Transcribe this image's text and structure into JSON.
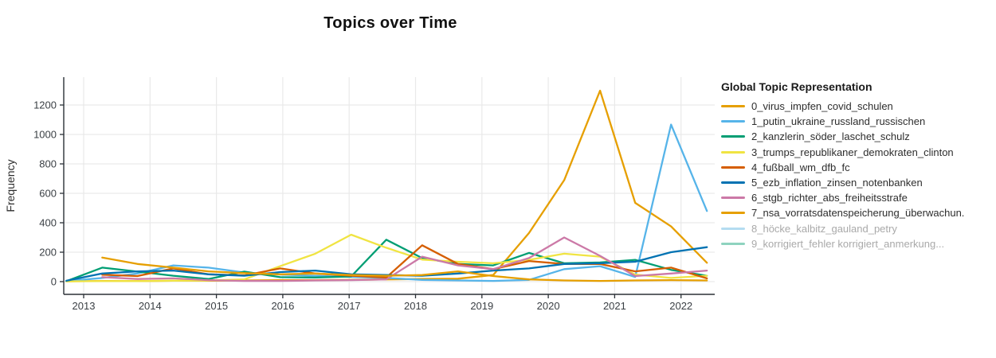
{
  "title": "Topics over Time",
  "y_axis": {
    "label": "Frequency",
    "ticks": [
      0,
      200,
      400,
      600,
      800,
      1000,
      1200
    ]
  },
  "x_axis": {
    "ticks": [
      2013,
      2014,
      2015,
      2016,
      2017,
      2018,
      2019,
      2020,
      2021,
      2022
    ]
  },
  "legend": {
    "title": "Global Topic Representation"
  },
  "chart_data": {
    "type": "line",
    "title": "Topics over Time",
    "xlabel": "",
    "ylabel": "Frequency",
    "xlim": [
      2012.7,
      2022.51
    ],
    "ylim": [
      0,
      1300
    ],
    "grid": true,
    "legend_position": "right",
    "x": [
      2012.74,
      2013.28,
      2013.81,
      2014.35,
      2014.88,
      2015.42,
      2015.96,
      2016.49,
      2017.03,
      2017.56,
      2018.1,
      2018.64,
      2019.17,
      2019.71,
      2020.24,
      2020.78,
      2021.31,
      2021.85,
      2022.39
    ],
    "series": [
      {
        "name": "0_virus_impfen_covid_schulen",
        "color": "#E69F00",
        "visible": true,
        "values": [
          2,
          5,
          4,
          6,
          6,
          8,
          10,
          10,
          12,
          15,
          18,
          20,
          45,
          330,
          690,
          1298,
          535,
          375,
          128
        ]
      },
      {
        "name": "1_putin_ukraine_russland_russischen",
        "color": "#56B4E9",
        "visible": true,
        "values": [
          4,
          25,
          55,
          110,
          95,
          62,
          48,
          40,
          32,
          25,
          12,
          8,
          5,
          12,
          85,
          105,
          32,
          1067,
          480
        ]
      },
      {
        "name": "2_kanzlerin_söder_laschet_schulz",
        "color": "#009E73",
        "visible": true,
        "values": [
          3,
          95,
          68,
          40,
          18,
          68,
          30,
          28,
          35,
          285,
          160,
          120,
          110,
          195,
          125,
          130,
          148,
          80,
          40
        ]
      },
      {
        "name": "3_trumps_republikaner_demokraten_clinton",
        "color": "#F0E442",
        "visible": true,
        "values": [
          2,
          3,
          4,
          6,
          8,
          15,
          105,
          190,
          319,
          230,
          150,
          135,
          125,
          148,
          190,
          170,
          48,
          25,
          40
        ]
      },
      {
        "name": "4_fußball_wm_dfb_fc",
        "color": "#D55E00",
        "visible": true,
        "values": [
          null,
          47,
          38,
          90,
          50,
          42,
          90,
          55,
          40,
          28,
          247,
          120,
          85,
          140,
          120,
          120,
          70,
          95,
          22
        ]
      },
      {
        "name": "5_ezb_inflation_zinsen_notenbanken",
        "color": "#0072B2",
        "visible": true,
        "values": [
          6,
          55,
          70,
          75,
          50,
          40,
          65,
          75,
          50,
          45,
          40,
          55,
          75,
          90,
          120,
          125,
          135,
          200,
          234
        ]
      },
      {
        "name": "6_stgb_richter_abs_freiheitsstrafe",
        "color": "#CC79A7",
        "visible": true,
        "values": [
          null,
          30,
          18,
          22,
          10,
          5,
          5,
          8,
          10,
          15,
          170,
          110,
          85,
          160,
          300,
          175,
          38,
          55,
          75
        ]
      },
      {
        "name": "7_nsa_vorratsdatenspeicherung_überwachun.",
        "color": "#E69F00",
        "visible": true,
        "values": [
          null,
          163,
          120,
          95,
          70,
          58,
          50,
          55,
          45,
          40,
          45,
          70,
          38,
          15,
          8,
          5,
          8,
          10,
          8
        ]
      },
      {
        "name": "8_höcke_kalbitz_gauland_petry",
        "color": "#B4DCF1",
        "visible": false,
        "values": []
      },
      {
        "name": "9_korrigiert_fehler korrigiert_anmerkung...",
        "color": "#8ED3BF",
        "visible": false,
        "values": []
      }
    ]
  }
}
